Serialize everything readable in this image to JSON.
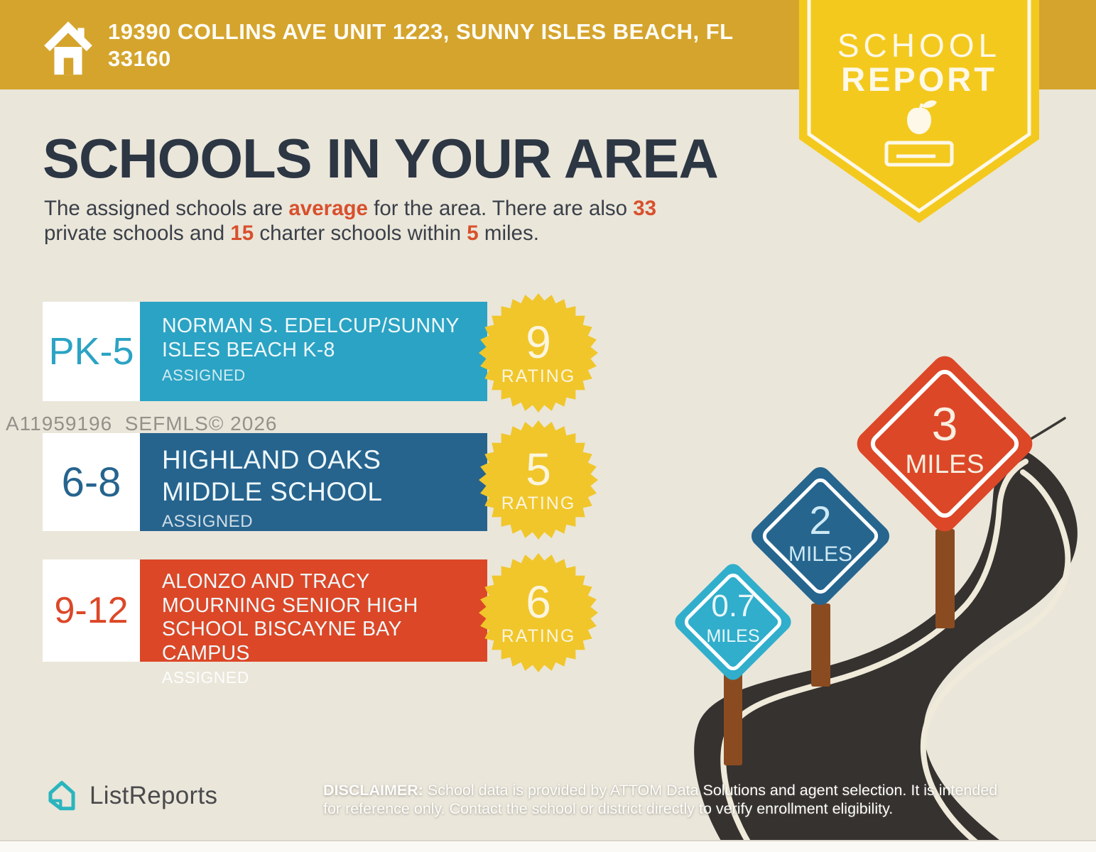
{
  "banner": {
    "address_line1": "19390 COLLINS AVE UNIT 1223, SUNNY ISLES BEACH, FL",
    "address_line2": "33160"
  },
  "ribbon": {
    "line1": "SCHOOL",
    "line2": "REPORT"
  },
  "heading": "SCHOOLS IN YOUR AREA",
  "subtitle": {
    "s1": "The assigned schools are ",
    "b1": "average",
    "s2": " for the area. There are also ",
    "b2": "33",
    "s3": "private schools and ",
    "b3": "15",
    "s4": " charter schools within ",
    "b4": "5",
    "s5": " miles."
  },
  "watermark": "A11959196  SEFMLS© 2026",
  "schools": [
    {
      "grades": "PK-5",
      "name_line1": "NORMAN S. EDELCUP/SUNNY",
      "name_line2": "ISLES BEACH K-8",
      "status": "ASSIGNED",
      "rating": "9",
      "rating_label": "RATING",
      "color": "#2BA3C4"
    },
    {
      "grades": "6-8",
      "name_line1": "HIGHLAND OAKS",
      "name_line2": "MIDDLE SCHOOL",
      "status": "ASSIGNED",
      "rating": "5",
      "rating_label": "RATING",
      "color": "#26648E"
    },
    {
      "grades": "9-12",
      "name_line1": "ALONZO AND TRACY",
      "name_line2": "MOURNING SENIOR HIGH",
      "name_line3": "SCHOOL BISCAYNE BAY",
      "name_line4": "CAMPUS",
      "status": "ASSIGNED",
      "rating": "6",
      "rating_label": "RATING",
      "color": "#DC4727"
    }
  ],
  "signs": [
    {
      "value": "0.7",
      "unit": "MILES",
      "color": "#30AECB",
      "text_color": "#E9F6FA"
    },
    {
      "value": "2",
      "unit": "MILES",
      "color": "#26658E",
      "text_color": "#CDE9F5"
    },
    {
      "value": "3",
      "unit": "MILES",
      "color": "#DC4727",
      "text_color": "#F7EFE1"
    }
  ],
  "footer": {
    "logo_text": "ListReports",
    "disclaimer_label": "DISCLAIMER:",
    "disclaimer_line1_rest": " School data is provided by ATTOM Data Solutions and agent selection. It is intended",
    "disclaimer_line2": "for reference only. Contact the school or district directly to verify enrollment eligibility."
  },
  "colors": {
    "banner_gold": "#D5A42D",
    "ribbon_yellow": "#F4C91E",
    "seal_yellow": "#F0C62B",
    "accent_red": "#D8502C",
    "heading_navy": "#2D3643",
    "road_charcoal": "#353230",
    "post_brown": "#8B4B20",
    "logo_teal": "#2AB5BE"
  }
}
